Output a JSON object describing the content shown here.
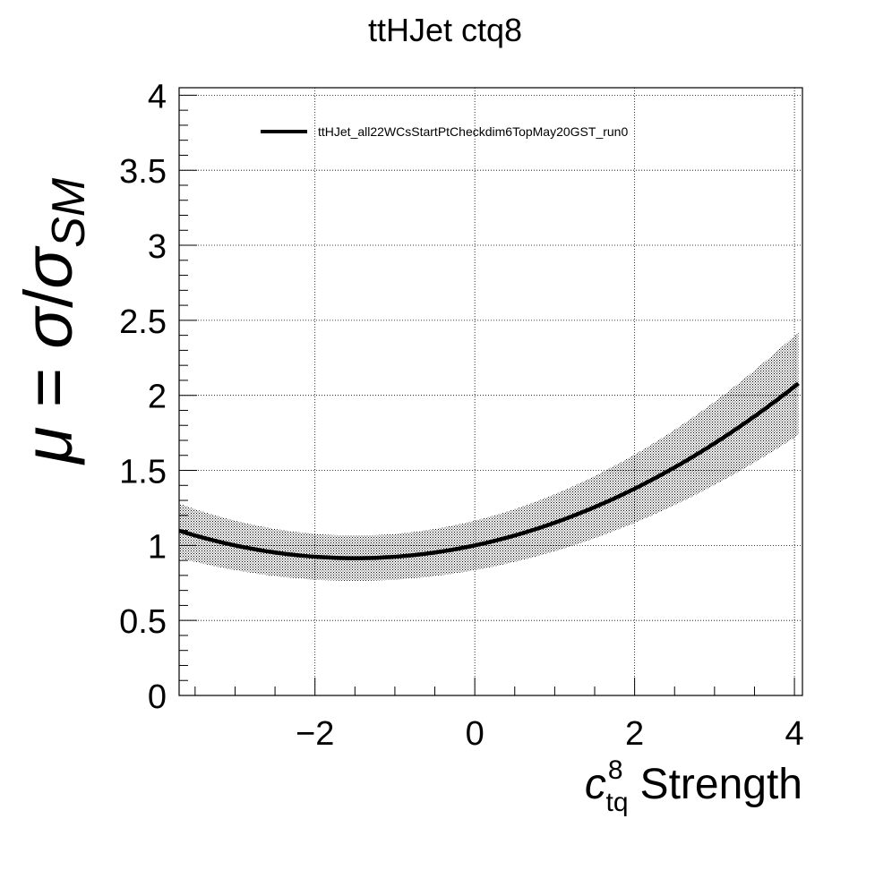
{
  "chart_data": {
    "type": "line",
    "title": "ttHJet ctq8",
    "xlabel": {
      "symbol": "c",
      "superscript": "8",
      "subscript": "tq",
      "text": "Strength"
    },
    "ylabel": {
      "mu": "μ",
      "eq": " = ",
      "sigma": "σ",
      "slash": "/",
      "sigma2": "σ",
      "sub": "SM"
    },
    "xlim": [
      -3.7,
      4.1
    ],
    "ylim": [
      0,
      4.05
    ],
    "x_ticks": [
      {
        "v": -2,
        "label": "−2"
      },
      {
        "v": 0,
        "label": "0"
      },
      {
        "v": 2,
        "label": "2"
      },
      {
        "v": 4,
        "label": "4"
      }
    ],
    "y_ticks": [
      {
        "v": 0,
        "label": "0"
      },
      {
        "v": 0.5,
        "label": "0.5"
      },
      {
        "v": 1,
        "label": "1"
      },
      {
        "v": 1.5,
        "label": "1.5"
      },
      {
        "v": 2,
        "label": "2"
      },
      {
        "v": 2.5,
        "label": "2.5"
      },
      {
        "v": 3,
        "label": "3"
      },
      {
        "v": 3.5,
        "label": "3.5"
      },
      {
        "v": 4,
        "label": "4"
      }
    ],
    "grid": true,
    "legend": {
      "position": "top",
      "entries": [
        "ttHJet_all22WCsStartPtCheckdim6TopMay20GST_run0"
      ]
    },
    "series": [
      {
        "name": "ttHJet_all22WCsStartPtCheckdim6TopMay20GST_run0",
        "color": "#000000",
        "quadratic": {
          "a": 0.0378,
          "b": 0.1134,
          "c": 1.0
        },
        "band": {
          "type": "relative",
          "fraction": 0.165,
          "fill": "hatched"
        },
        "x_range": [
          -3.7,
          4.05
        ]
      }
    ]
  }
}
